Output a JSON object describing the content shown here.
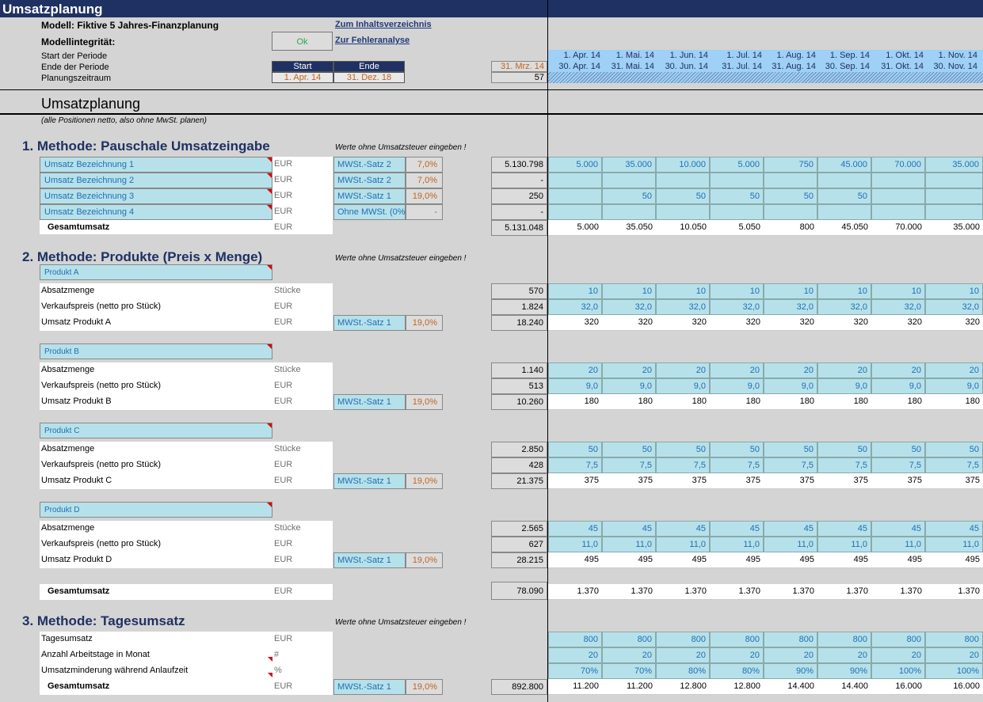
{
  "title": "Umsatzplanung",
  "header": {
    "model_label": "Modell: Fiktive 5 Jahres-Finanzplanung",
    "integrity_label": "Modellintegrität:",
    "integrity_status": "Ok",
    "link_contents": "Zum Inhaltsverzeichnis",
    "link_errors": "Zur Fehleranalyse",
    "start_label": "Start der Periode",
    "end_label": "Ende der Periode",
    "horizon_label": "Planungszeitraum",
    "col_start": "Start",
    "col_end": "Ende",
    "start_value": "1. Apr. 14",
    "end_value": "31. Dez. 18",
    "prev_date": "31. Mrz. 14",
    "horizon_value": "57",
    "month_starts": [
      "1. Apr. 14",
      "1. Mai. 14",
      "1. Jun. 14",
      "1. Jul. 14",
      "1. Aug. 14",
      "1. Sep. 14",
      "1. Okt. 14",
      "1. Nov. 14"
    ],
    "month_ends": [
      "30. Apr. 14",
      "31. Mai. 14",
      "30. Jun. 14",
      "31. Jul. 14",
      "31. Aug. 14",
      "30. Sep. 14",
      "31. Okt. 14",
      "30. Nov. 14"
    ]
  },
  "section_title": "Umsatzplanung",
  "section_note": "(alle Positionen netto, also ohne MwSt. planen)",
  "method1": {
    "title": "1.  Methode: Pauschale Umsatzeingabe",
    "note": "Werte ohne Umsatzsteuer eingeben !",
    "rows": [
      {
        "label": "Umsatz Bezeichnung 1",
        "unit": "EUR",
        "mwst": "MWSt.-Satz 2",
        "pct": "7,0%",
        "sum": "5.130.798",
        "values": [
          "5.000",
          "35.000",
          "10.000",
          "5.000",
          "750",
          "45.000",
          "70.000",
          "35.000"
        ]
      },
      {
        "label": "Umsatz Bezeichnung 2",
        "unit": "EUR",
        "mwst": "MWSt.-Satz 2",
        "pct": "7,0%",
        "sum": "-",
        "values": [
          "",
          "",
          "",
          "",
          "",
          "",
          "",
          ""
        ]
      },
      {
        "label": "Umsatz Bezeichnung 3",
        "unit": "EUR",
        "mwst": "MWSt.-Satz 1",
        "pct": "19,0%",
        "sum": "250",
        "values": [
          "",
          "50",
          "50",
          "50",
          "50",
          "50",
          "",
          ""
        ]
      },
      {
        "label": "Umsatz Bezeichnung 4",
        "unit": "EUR",
        "mwst": "Ohne MWSt. (0%",
        "pct": "-",
        "sum": "-",
        "values": [
          "",
          "",
          "",
          "",
          "",
          "",
          "",
          ""
        ]
      }
    ],
    "total": {
      "label": "Gesamtumsatz",
      "unit": "EUR",
      "sum": "5.131.048",
      "values": [
        "5.000",
        "35.050",
        "10.050",
        "5.050",
        "800",
        "45.050",
        "70.000",
        "35.000"
      ]
    }
  },
  "method2": {
    "title": "2.  Methode: Produkte (Preis x Menge)",
    "note": "Werte ohne Umsatzsteuer eingeben !",
    "products": [
      {
        "name": "Produkt A",
        "qty_label": "Absatzmenge",
        "qty_unit": "Stücke",
        "qty_sum": "570",
        "qty": [
          "10",
          "10",
          "10",
          "10",
          "10",
          "10",
          "10",
          "10"
        ],
        "price_label": "Verkaufspreis (netto pro Stück)",
        "price_unit": "EUR",
        "price_sum": "1.824",
        "price": [
          "32,0",
          "32,0",
          "32,0",
          "32,0",
          "32,0",
          "32,0",
          "32,0",
          "32,0"
        ],
        "rev_label": "Umsatz Produkt A",
        "rev_unit": "EUR",
        "mwst": "MWSt.-Satz 1",
        "pct": "19,0%",
        "rev_sum": "18.240",
        "rev": [
          "320",
          "320",
          "320",
          "320",
          "320",
          "320",
          "320",
          "320"
        ]
      },
      {
        "name": "Produkt B",
        "qty_label": "Absatzmenge",
        "qty_unit": "Stücke",
        "qty_sum": "1.140",
        "qty": [
          "20",
          "20",
          "20",
          "20",
          "20",
          "20",
          "20",
          "20"
        ],
        "price_label": "Verkaufspreis (netto pro Stück)",
        "price_unit": "EUR",
        "price_sum": "513",
        "price": [
          "9,0",
          "9,0",
          "9,0",
          "9,0",
          "9,0",
          "9,0",
          "9,0",
          "9,0"
        ],
        "rev_label": "Umsatz Produkt B",
        "rev_unit": "EUR",
        "mwst": "MWSt.-Satz 1",
        "pct": "19,0%",
        "rev_sum": "10.260",
        "rev": [
          "180",
          "180",
          "180",
          "180",
          "180",
          "180",
          "180",
          "180"
        ]
      },
      {
        "name": "Produkt C",
        "qty_label": "Absatzmenge",
        "qty_unit": "Stücke",
        "qty_sum": "2.850",
        "qty": [
          "50",
          "50",
          "50",
          "50",
          "50",
          "50",
          "50",
          "50"
        ],
        "price_label": "Verkaufspreis (netto pro Stück)",
        "price_unit": "EUR",
        "price_sum": "428",
        "price": [
          "7,5",
          "7,5",
          "7,5",
          "7,5",
          "7,5",
          "7,5",
          "7,5",
          "7,5"
        ],
        "rev_label": "Umsatz Produkt C",
        "rev_unit": "EUR",
        "mwst": "MWSt.-Satz 1",
        "pct": "19,0%",
        "rev_sum": "21.375",
        "rev": [
          "375",
          "375",
          "375",
          "375",
          "375",
          "375",
          "375",
          "375"
        ]
      },
      {
        "name": "Produkt D",
        "qty_label": "Absatzmenge",
        "qty_unit": "Stücke",
        "qty_sum": "2.565",
        "qty": [
          "45",
          "45",
          "45",
          "45",
          "45",
          "45",
          "45",
          "45"
        ],
        "price_label": "Verkaufspreis (netto pro Stück)",
        "price_unit": "EUR",
        "price_sum": "627",
        "price": [
          "11,0",
          "11,0",
          "11,0",
          "11,0",
          "11,0",
          "11,0",
          "11,0",
          "11,0"
        ],
        "rev_label": "Umsatz Produkt D",
        "rev_unit": "EUR",
        "mwst": "MWSt.-Satz 1",
        "pct": "19,0%",
        "rev_sum": "28.215",
        "rev": [
          "495",
          "495",
          "495",
          "495",
          "495",
          "495",
          "495",
          "495"
        ]
      }
    ],
    "total": {
      "label": "Gesamtumsatz",
      "unit": "EUR",
      "sum": "78.090",
      "values": [
        "1.370",
        "1.370",
        "1.370",
        "1.370",
        "1.370",
        "1.370",
        "1.370",
        "1.370"
      ]
    }
  },
  "method3": {
    "title": "3.  Methode: Tagesumsatz",
    "note": "Werte ohne Umsatzsteuer eingeben !",
    "rows": [
      {
        "label": "Tagesumsatz",
        "unit": "EUR",
        "values": [
          "800",
          "800",
          "800",
          "800",
          "800",
          "800",
          "800",
          "800"
        ]
      },
      {
        "label": "Anzahl Arbeitstage in Monat",
        "unit": "#",
        "values": [
          "20",
          "20",
          "20",
          "20",
          "20",
          "20",
          "20",
          "20"
        ]
      },
      {
        "label": "Umsatzminderung während Anlaufzeit",
        "unit": "%",
        "values": [
          "70%",
          "70%",
          "80%",
          "80%",
          "90%",
          "90%",
          "100%",
          "100%"
        ]
      }
    ],
    "total": {
      "label": "Gesamtumsatz",
      "unit": "EUR",
      "mwst": "MWSt.-Satz 1",
      "pct": "19,0%",
      "sum": "892.800",
      "values": [
        "11.200",
        "11.200",
        "12.800",
        "12.800",
        "14.400",
        "14.400",
        "16.000",
        "16.000"
      ]
    }
  }
}
